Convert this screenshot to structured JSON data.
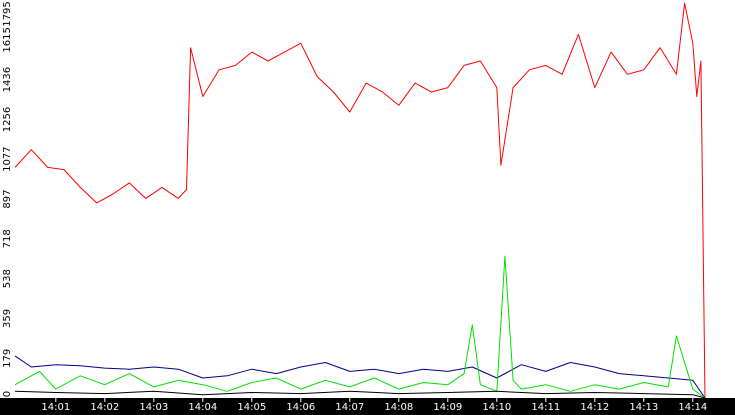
{
  "colors": {
    "background": "#ffffff",
    "axis_band": "#000000",
    "tick_text_x": "#ffffff",
    "tick_text_y": "#000000"
  },
  "chart_data": {
    "type": "line",
    "title": "",
    "xlabel": "",
    "ylabel": "",
    "x_range": [
      "14:00:10",
      "14:14:15"
    ],
    "ylim": [
      0,
      1795
    ],
    "grid": false,
    "legend": "none",
    "x_ticks": [
      "14:01",
      "14:02",
      "14:03",
      "14:04",
      "14:05",
      "14:06",
      "14:07",
      "14:08",
      "14:09",
      "14:10",
      "14:11",
      "14:12",
      "14:13",
      "14:14"
    ],
    "y_ticks": [
      0,
      179,
      359,
      538,
      718,
      897,
      1077,
      1256,
      1436,
      1615,
      1795
    ],
    "series": [
      {
        "color": "#ff0000",
        "x": [
          "14:00:10",
          "14:00:30",
          "14:00:50",
          "14:01:10",
          "14:01:30",
          "14:01:50",
          "14:02:10",
          "14:02:30",
          "14:02:50",
          "14:03:10",
          "14:03:30",
          "14:03:40",
          "14:03:45",
          "14:04:00",
          "14:04:20",
          "14:04:40",
          "14:05:00",
          "14:05:20",
          "14:05:40",
          "14:06:00",
          "14:06:20",
          "14:06:40",
          "14:07:00",
          "14:07:20",
          "14:07:40",
          "14:08:00",
          "14:08:20",
          "14:08:40",
          "14:09:00",
          "14:09:20",
          "14:09:40",
          "14:10:00",
          "14:10:05",
          "14:10:20",
          "14:10:40",
          "14:11:00",
          "14:11:20",
          "14:11:40",
          "14:12:00",
          "14:12:20",
          "14:12:40",
          "14:13:00",
          "14:13:20",
          "14:13:40",
          "14:13:50",
          "14:14:00",
          "14:14:05",
          "14:14:10",
          "14:14:15"
        ],
        "values": [
          1040,
          1120,
          1040,
          1030,
          950,
          880,
          920,
          970,
          900,
          950,
          900,
          940,
          1580,
          1360,
          1480,
          1500,
          1560,
          1520,
          1560,
          1600,
          1450,
          1380,
          1290,
          1420,
          1380,
          1320,
          1420,
          1380,
          1400,
          1500,
          1520,
          1400,
          1050,
          1400,
          1480,
          1500,
          1460,
          1640,
          1400,
          1560,
          1460,
          1480,
          1580,
          1460,
          1780,
          1600,
          1360,
          1520,
          0
        ]
      },
      {
        "color": "#00008b",
        "x": [
          "14:00:10",
          "14:00:30",
          "14:01:00",
          "14:01:30",
          "14:02:00",
          "14:02:30",
          "14:03:00",
          "14:03:30",
          "14:04:00",
          "14:04:30",
          "14:05:00",
          "14:05:30",
          "14:06:00",
          "14:06:30",
          "14:07:00",
          "14:07:30",
          "14:08:00",
          "14:08:30",
          "14:09:00",
          "14:09:30",
          "14:10:00",
          "14:10:30",
          "14:11:00",
          "14:11:30",
          "14:12:00",
          "14:12:30",
          "14:13:00",
          "14:13:30",
          "14:14:00",
          "14:14:15"
        ],
        "values": [
          190,
          140,
          150,
          145,
          135,
          130,
          140,
          130,
          90,
          100,
          130,
          110,
          140,
          160,
          120,
          130,
          110,
          130,
          120,
          140,
          90,
          150,
          120,
          160,
          140,
          110,
          100,
          90,
          80,
          0
        ]
      },
      {
        "color": "#00e000",
        "x": [
          "14:00:10",
          "14:00:40",
          "14:01:00",
          "14:01:30",
          "14:02:00",
          "14:02:30",
          "14:03:00",
          "14:03:30",
          "14:04:00",
          "14:04:30",
          "14:05:00",
          "14:05:30",
          "14:06:00",
          "14:06:30",
          "14:07:00",
          "14:07:30",
          "14:08:00",
          "14:08:30",
          "14:09:00",
          "14:09:20",
          "14:09:30",
          "14:09:40",
          "14:10:00",
          "14:10:10",
          "14:10:20",
          "14:10:30",
          "14:11:00",
          "14:11:30",
          "14:12:00",
          "14:12:30",
          "14:13:00",
          "14:13:30",
          "14:13:40",
          "14:14:00",
          "14:14:15"
        ],
        "values": [
          60,
          120,
          40,
          100,
          60,
          110,
          50,
          80,
          60,
          30,
          70,
          90,
          40,
          80,
          50,
          90,
          40,
          70,
          60,
          110,
          330,
          60,
          30,
          640,
          80,
          40,
          60,
          30,
          60,
          40,
          70,
          50,
          280,
          40,
          0
        ]
      },
      {
        "color": "#000000",
        "x": [
          "14:00:10",
          "14:01:00",
          "14:02:00",
          "14:03:00",
          "14:04:00",
          "14:05:00",
          "14:06:00",
          "14:07:00",
          "14:08:00",
          "14:09:00",
          "14:10:00",
          "14:11:00",
          "14:12:00",
          "14:13:00",
          "14:14:00",
          "14:14:15"
        ],
        "values": [
          30,
          25,
          20,
          30,
          15,
          25,
          20,
          30,
          20,
          25,
          30,
          20,
          25,
          20,
          15,
          0
        ]
      }
    ]
  }
}
